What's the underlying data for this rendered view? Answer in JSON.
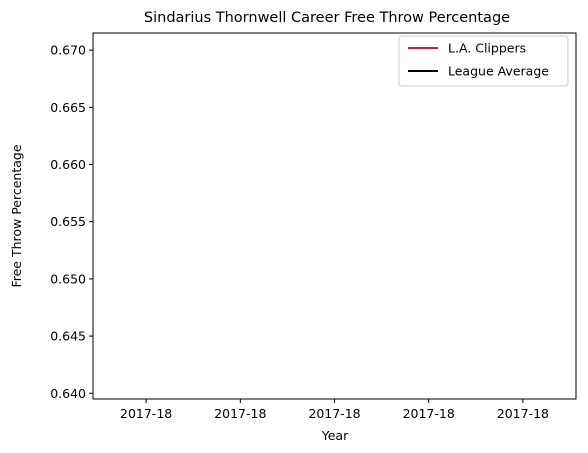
{
  "chart_data": {
    "type": "line",
    "title": "Sindarius Thornwell Career Free Throw Percentage",
    "xlabel": "Year",
    "ylabel": "Free Throw Percentage",
    "x_tick_labels": [
      "2017-18",
      "2017-18",
      "2017-18",
      "2017-18",
      "2017-18"
    ],
    "y_ticks": [
      "0.640",
      "0.645",
      "0.650",
      "0.655",
      "0.660",
      "0.665",
      "0.670"
    ],
    "ylim": [
      0.6395,
      0.6715
    ],
    "grid": false,
    "legend_position": "top-right",
    "series": [
      {
        "name": "L.A. Clippers",
        "color": "#dc143c",
        "x": [],
        "values": []
      },
      {
        "name": "League Average",
        "color": "#000000",
        "x": [],
        "values": []
      }
    ]
  }
}
